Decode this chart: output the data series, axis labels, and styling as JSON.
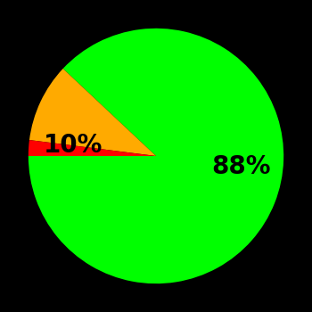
{
  "slices": [
    88,
    10,
    2
  ],
  "colors": [
    "#00ff00",
    "#ffaa00",
    "#ff0000"
  ],
  "labels": [
    "88%",
    "10%",
    ""
  ],
  "background_color": "#000000",
  "startangle": 180,
  "label_fontsize": 20,
  "label_color": "#000000",
  "label_fontweight": "bold",
  "figsize": [
    3.5,
    3.5
  ],
  "dpi": 100
}
